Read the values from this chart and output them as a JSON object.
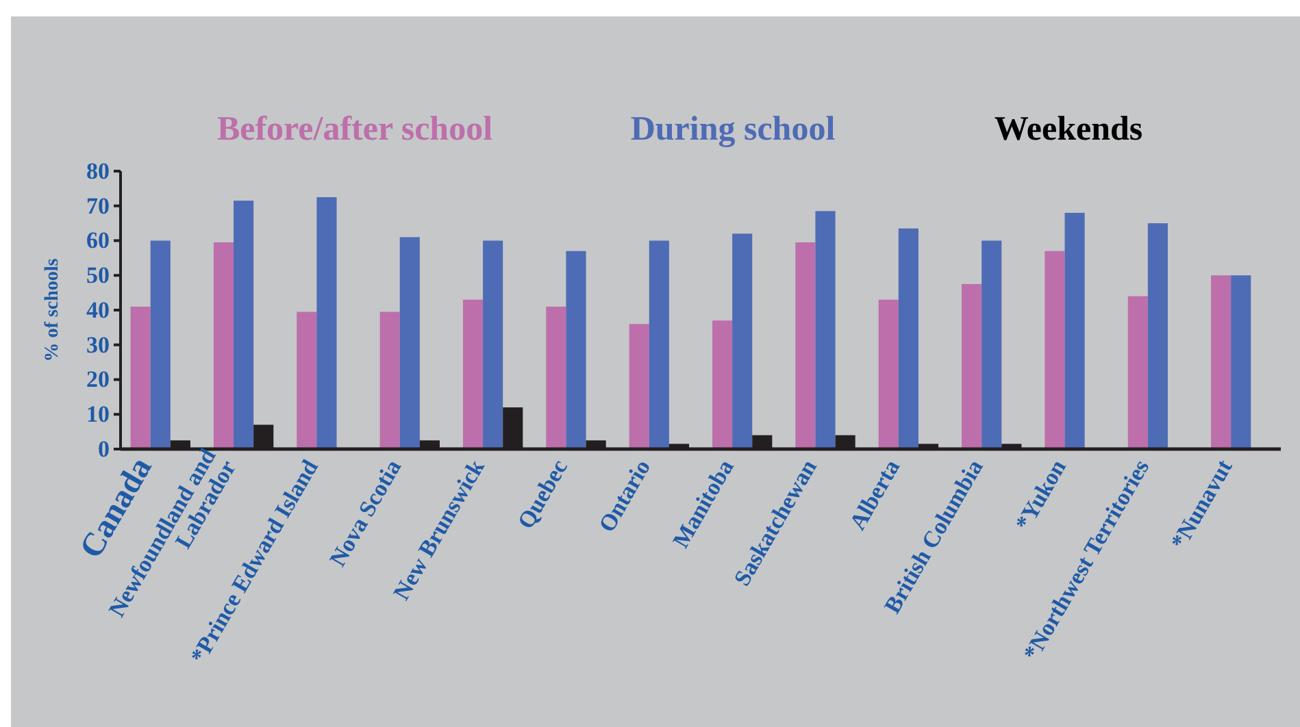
{
  "chart_data": {
    "type": "bar",
    "ylabel": "% of schools",
    "categories": [
      "Canada",
      "Newfoundland and\nLabrador",
      "*Prince Edward Island",
      "Nova Scotia",
      "New Brunswick",
      "Quebec",
      "Ontario",
      "Manitoba",
      "Saskatchewan",
      "Alberta",
      "British Columbia",
      "*Yukon",
      "*Northwest Territories",
      "*Nunavut"
    ],
    "series": [
      {
        "name": "Before/after school",
        "color": "#bd6fab",
        "values": [
          41,
          59.5,
          39.5,
          39.5,
          43,
          41,
          36,
          37,
          59.5,
          43,
          47.5,
          57,
          44,
          50
        ]
      },
      {
        "name": "During school",
        "color": "#4e6bb5",
        "values": [
          60,
          71.5,
          72.5,
          61,
          60,
          57,
          60,
          62,
          68.5,
          63.5,
          60,
          68,
          65,
          50
        ]
      },
      {
        "name": "Weekends",
        "color": "#231f20",
        "values": [
          2.5,
          7,
          null,
          2.5,
          12,
          2.5,
          1.5,
          4,
          4,
          1.5,
          1.5,
          null,
          null,
          null
        ]
      }
    ],
    "ylim": [
      0,
      80
    ],
    "yticks": [
      0,
      10,
      20,
      30,
      40,
      50,
      60,
      70,
      80
    ],
    "legend": "top",
    "grid": false
  }
}
